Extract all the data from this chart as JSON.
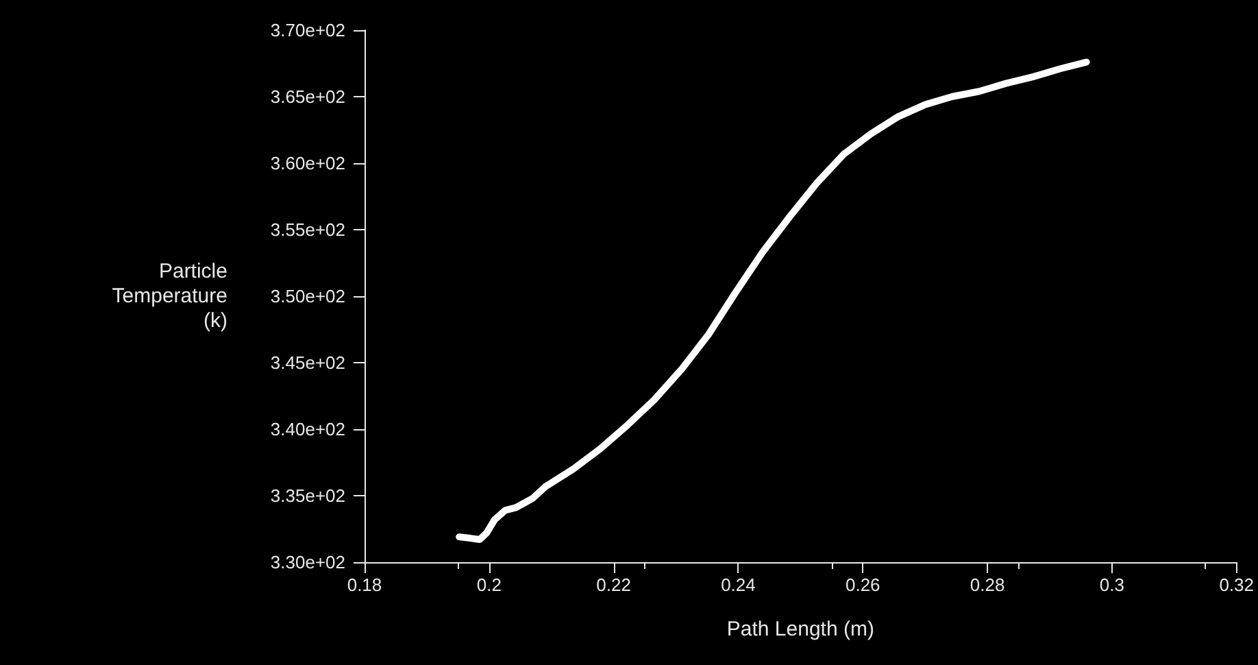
{
  "chart_data": {
    "type": "line",
    "xlabel": "Path Length (m)",
    "ylabel": "Particle\nTemperature\n(k)",
    "x": [
      0.1952,
      0.197,
      0.1985,
      0.1996,
      0.2009,
      0.2026,
      0.2043,
      0.207,
      0.2091,
      0.2135,
      0.2178,
      0.2222,
      0.2265,
      0.2309,
      0.2352,
      0.2396,
      0.2439,
      0.2483,
      0.2526,
      0.257,
      0.2613,
      0.2657,
      0.27,
      0.2743,
      0.2787,
      0.283,
      0.2874,
      0.2917,
      0.2959
    ],
    "series": [
      {
        "color": "#ffffff",
        "values": [
          331.9,
          331.8,
          331.7,
          332.2,
          333.2,
          333.9,
          334.1,
          334.8,
          335.7,
          337.0,
          338.5,
          340.3,
          342.2,
          344.5,
          347.1,
          350.3,
          353.3,
          356.0,
          358.5,
          360.7,
          362.2,
          363.5,
          364.4,
          365.0,
          365.4,
          366.0,
          366.5,
          367.1,
          367.6
        ]
      }
    ],
    "xlim": [
      0.18,
      0.32
    ],
    "xticks": [
      0.18,
      0.2,
      0.22,
      0.24,
      0.26,
      0.28,
      0.3,
      0.32
    ],
    "ylim": [
      330,
      370
    ],
    "yticks": [
      {
        "value": 330,
        "label": "3.30e+02"
      },
      {
        "value": 335,
        "label": "3.35e+02"
      },
      {
        "value": 340,
        "label": "3.40e+02"
      },
      {
        "value": 345,
        "label": "3.45e+02"
      },
      {
        "value": 350,
        "label": "3.50e+02"
      },
      {
        "value": 355,
        "label": "3.55e+02"
      },
      {
        "value": 360,
        "label": "3.60e+02"
      },
      {
        "value": 365,
        "label": "3.65e+02"
      },
      {
        "value": 370,
        "label": "3.70e+02"
      }
    ],
    "grid": false,
    "marker": "none",
    "line_style": "solid"
  }
}
